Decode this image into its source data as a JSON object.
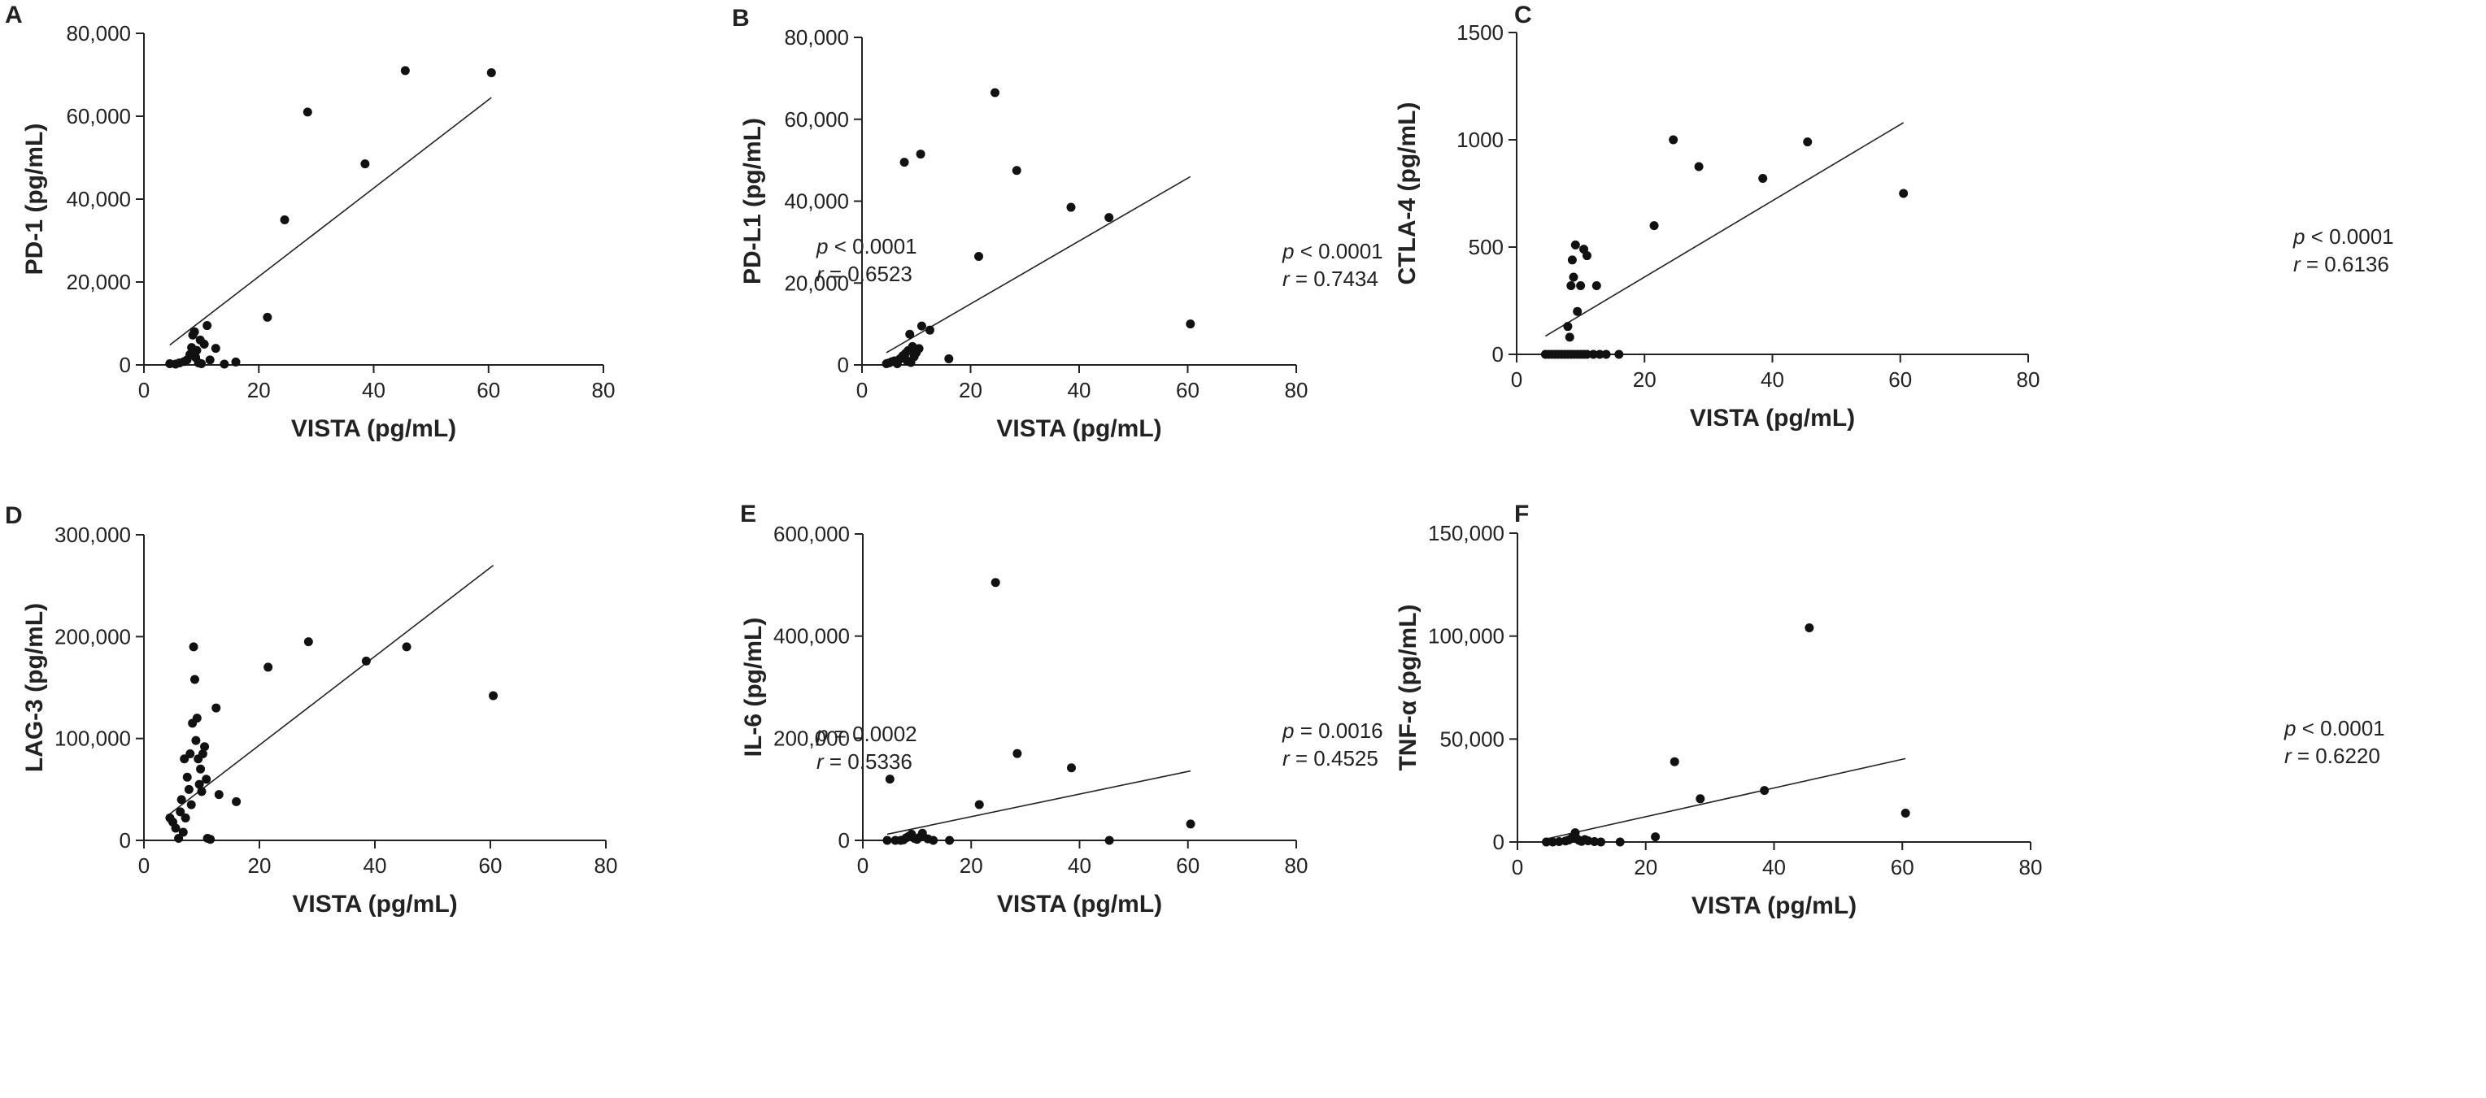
{
  "figure": {
    "x_axis_label": "VISTA (pg/mL)",
    "x_ticks": [
      "0",
      "20",
      "40",
      "60",
      "80"
    ]
  },
  "chart_data": [
    {
      "type": "scatter",
      "panel": "A",
      "xlabel": "VISTA (pg/mL)",
      "ylabel": "PD-1 (pg/mL)",
      "xlim": [
        0,
        80
      ],
      "ylim": [
        0,
        80000
      ],
      "x_ticks": [
        "0",
        "20",
        "40",
        "60",
        "80"
      ],
      "y_ticks": [
        "0",
        "20,000",
        "40,000",
        "60,000",
        "80,000"
      ],
      "stat_p": {
        "symbol": "p",
        "text": " < 0.0001"
      },
      "stat_r": {
        "symbol": "r",
        "text": " = 0.6523"
      },
      "regression": {
        "x": [
          4.5,
          60.5
        ],
        "y": [
          4800,
          64500
        ]
      },
      "points": [
        [
          4.5,
          300
        ],
        [
          5.5,
          200
        ],
        [
          6.2,
          500
        ],
        [
          7.0,
          800
        ],
        [
          7.5,
          1200
        ],
        [
          8.0,
          2500
        ],
        [
          8.3,
          4200
        ],
        [
          8.5,
          7200
        ],
        [
          8.8,
          8000
        ],
        [
          9.0,
          1800
        ],
        [
          9.2,
          3500
        ],
        [
          9.5,
          500
        ],
        [
          9.8,
          6000
        ],
        [
          10.0,
          300
        ],
        [
          10.5,
          5000
        ],
        [
          11.0,
          9500
        ],
        [
          11.5,
          1200
        ],
        [
          12.5,
          4000
        ],
        [
          14.0,
          200
        ],
        [
          16.0,
          700
        ],
        [
          21.5,
          11500
        ],
        [
          24.5,
          35000
        ],
        [
          28.5,
          61000
        ],
        [
          38.5,
          48500
        ],
        [
          45.5,
          71000
        ],
        [
          60.5,
          70500
        ]
      ]
    },
    {
      "type": "scatter",
      "panel": "B",
      "xlabel": "VISTA (pg/mL)",
      "ylabel": "PD-L1 (pg/mL)",
      "xlim": [
        0,
        80
      ],
      "ylim": [
        0,
        80000
      ],
      "x_ticks": [
        "0",
        "20",
        "40",
        "60",
        "80"
      ],
      "y_ticks": [
        "0",
        "20,000",
        "40,000",
        "60,000",
        "80,000"
      ],
      "stat_p": {
        "symbol": "p",
        "text": " < 0.0001"
      },
      "stat_r": {
        "symbol": "r",
        "text": " = 0.7434"
      },
      "regression": {
        "x": [
          4.5,
          60.5
        ],
        "y": [
          3000,
          46000
        ]
      },
      "points": [
        [
          4.5,
          300
        ],
        [
          5.0,
          500
        ],
        [
          5.5,
          800
        ],
        [
          6.0,
          1000
        ],
        [
          6.5,
          300
        ],
        [
          7.0,
          1500
        ],
        [
          7.5,
          2200
        ],
        [
          8.0,
          2800
        ],
        [
          8.3,
          1000
        ],
        [
          8.5,
          3500
        ],
        [
          8.8,
          7500
        ],
        [
          9.0,
          600
        ],
        [
          9.3,
          4500
        ],
        [
          9.6,
          2000
        ],
        [
          10.0,
          3000
        ],
        [
          10.5,
          4000
        ],
        [
          11.0,
          9500
        ],
        [
          12.5,
          8500
        ],
        [
          16.0,
          1500
        ],
        [
          7.8,
          49500
        ],
        [
          10.8,
          51500
        ],
        [
          21.5,
          26500
        ],
        [
          24.5,
          66500
        ],
        [
          28.5,
          47500
        ],
        [
          38.5,
          38500
        ],
        [
          45.5,
          36000
        ],
        [
          60.5,
          10000
        ]
      ]
    },
    {
      "type": "scatter",
      "panel": "C",
      "xlabel": "VISTA (pg/mL)",
      "ylabel": "CTLA-4 (pg/mL)",
      "xlim": [
        0,
        80
      ],
      "ylim": [
        0,
        1500
      ],
      "x_ticks": [
        "0",
        "20",
        "40",
        "60",
        "80"
      ],
      "y_ticks": [
        "0",
        "500",
        "1000",
        "1500"
      ],
      "stat_p": {
        "symbol": "p",
        "text": " < 0.0001"
      },
      "stat_r": {
        "symbol": "r",
        "text": " = 0.6136"
      },
      "regression": {
        "x": [
          4.5,
          60.5
        ],
        "y": [
          85,
          1080
        ]
      },
      "points": [
        [
          4.5,
          0
        ],
        [
          5.0,
          0
        ],
        [
          5.5,
          0
        ],
        [
          6.0,
          0
        ],
        [
          6.5,
          0
        ],
        [
          7.0,
          0
        ],
        [
          7.5,
          0
        ],
        [
          8.0,
          0
        ],
        [
          8.5,
          0
        ],
        [
          9.0,
          0
        ],
        [
          9.5,
          0
        ],
        [
          10.0,
          0
        ],
        [
          10.5,
          0
        ],
        [
          11.0,
          0
        ],
        [
          12.0,
          0
        ],
        [
          13.0,
          0
        ],
        [
          14.0,
          0
        ],
        [
          16.0,
          0
        ],
        [
          8.0,
          130
        ],
        [
          8.3,
          80
        ],
        [
          8.5,
          320
        ],
        [
          8.7,
          440
        ],
        [
          8.9,
          360
        ],
        [
          9.2,
          510
        ],
        [
          9.5,
          200
        ],
        [
          10.0,
          320
        ],
        [
          10.5,
          490
        ],
        [
          11.0,
          460
        ],
        [
          12.5,
          320
        ],
        [
          21.5,
          600
        ],
        [
          24.5,
          1000
        ],
        [
          28.5,
          875
        ],
        [
          38.5,
          820
        ],
        [
          45.5,
          990
        ],
        [
          60.5,
          750
        ]
      ]
    },
    {
      "type": "scatter",
      "panel": "D",
      "xlabel": "VISTA (pg/mL)",
      "ylabel": "LAG-3 (pg/mL)",
      "xlim": [
        0,
        80
      ],
      "ylim": [
        0,
        300000
      ],
      "x_ticks": [
        "0",
        "20",
        "40",
        "60",
        "80"
      ],
      "y_ticks": [
        "0",
        "100,000",
        "200,000",
        "300,000"
      ],
      "stat_p": {
        "symbol": "p",
        "text": " = 0.0002"
      },
      "stat_r": {
        "symbol": "r",
        "text": " = 0.5336"
      },
      "regression": {
        "x": [
          4.5,
          60.5
        ],
        "y": [
          26000,
          270000
        ]
      },
      "points": [
        [
          4.5,
          22000
        ],
        [
          5.0,
          18000
        ],
        [
          5.5,
          12000
        ],
        [
          6.0,
          2000
        ],
        [
          6.3,
          28000
        ],
        [
          6.5,
          40000
        ],
        [
          6.8,
          8000
        ],
        [
          7.0,
          80000
        ],
        [
          7.2,
          22000
        ],
        [
          7.5,
          62000
        ],
        [
          7.8,
          50000
        ],
        [
          8.0,
          85000
        ],
        [
          8.2,
          35000
        ],
        [
          8.4,
          115000
        ],
        [
          8.6,
          190000
        ],
        [
          8.8,
          158000
        ],
        [
          9.0,
          98000
        ],
        [
          9.2,
          120000
        ],
        [
          9.4,
          80000
        ],
        [
          9.6,
          55000
        ],
        [
          9.8,
          70000
        ],
        [
          10.0,
          48000
        ],
        [
          10.2,
          85000
        ],
        [
          10.5,
          92000
        ],
        [
          10.8,
          60000
        ],
        [
          11.0,
          2000
        ],
        [
          11.5,
          1000
        ],
        [
          12.5,
          130000
        ],
        [
          13.0,
          45000
        ],
        [
          16.0,
          38000
        ],
        [
          21.5,
          170000
        ],
        [
          28.5,
          195000
        ],
        [
          38.5,
          176000
        ],
        [
          45.5,
          190000
        ],
        [
          60.5,
          142000
        ]
      ]
    },
    {
      "type": "scatter",
      "panel": "E",
      "xlabel": "VISTA (pg/mL)",
      "ylabel": "IL-6 (pg/mL)",
      "xlim": [
        0,
        80
      ],
      "ylim": [
        0,
        600000
      ],
      "x_ticks": [
        "0",
        "20",
        "40",
        "60",
        "80"
      ],
      "y_ticks": [
        "0",
        "200,000",
        "400,000",
        "600,000"
      ],
      "stat_p": {
        "symbol": "p",
        "text": " = 0.0016"
      },
      "stat_r": {
        "symbol": "r",
        "text": " = 0.4525"
      },
      "regression": {
        "x": [
          4.5,
          60.5
        ],
        "y": [
          12000,
          136000
        ]
      },
      "points": [
        [
          4.5,
          0
        ],
        [
          5.0,
          120000
        ],
        [
          6.0,
          0
        ],
        [
          7.0,
          0
        ],
        [
          7.5,
          1000
        ],
        [
          8.0,
          5000
        ],
        [
          8.5,
          8000
        ],
        [
          9.0,
          12000
        ],
        [
          9.5,
          4000
        ],
        [
          10.0,
          2000
        ],
        [
          10.5,
          6000
        ],
        [
          11.0,
          14000
        ],
        [
          12.0,
          3000
        ],
        [
          13.0,
          0
        ],
        [
          16.0,
          0
        ],
        [
          21.5,
          70000
        ],
        [
          24.5,
          505000
        ],
        [
          28.5,
          170000
        ],
        [
          38.5,
          142000
        ],
        [
          45.5,
          0
        ],
        [
          60.5,
          32000
        ]
      ]
    },
    {
      "type": "scatter",
      "panel": "F",
      "xlabel": "VISTA (pg/mL)",
      "ylabel": "TNF-α (pg/mL)",
      "xlim": [
        0,
        80
      ],
      "ylim": [
        0,
        150000
      ],
      "x_ticks": [
        "0",
        "20",
        "40",
        "60",
        "80"
      ],
      "y_ticks": [
        "0",
        "50,000",
        "100,000",
        "150,000"
      ],
      "stat_p": {
        "symbol": "p",
        "text": " < 0.0001"
      },
      "stat_r": {
        "symbol": "r",
        "text": " = 0.6220"
      },
      "regression": {
        "x": [
          4.5,
          60.5
        ],
        "y": [
          1500,
          40500
        ]
      },
      "points": [
        [
          4.5,
          0
        ],
        [
          5.5,
          0
        ],
        [
          6.5,
          200
        ],
        [
          7.5,
          500
        ],
        [
          8.0,
          1000
        ],
        [
          8.5,
          2000
        ],
        [
          9.0,
          4500
        ],
        [
          9.3,
          1500
        ],
        [
          9.6,
          800
        ],
        [
          10.0,
          300
        ],
        [
          10.5,
          1200
        ],
        [
          11.0,
          600
        ],
        [
          12.0,
          200
        ],
        [
          13.0,
          0
        ],
        [
          16.0,
          0
        ],
        [
          21.5,
          2500
        ],
        [
          24.5,
          39000
        ],
        [
          28.5,
          21000
        ],
        [
          38.5,
          25000
        ],
        [
          45.5,
          104000
        ],
        [
          60.5,
          14000
        ]
      ]
    }
  ]
}
